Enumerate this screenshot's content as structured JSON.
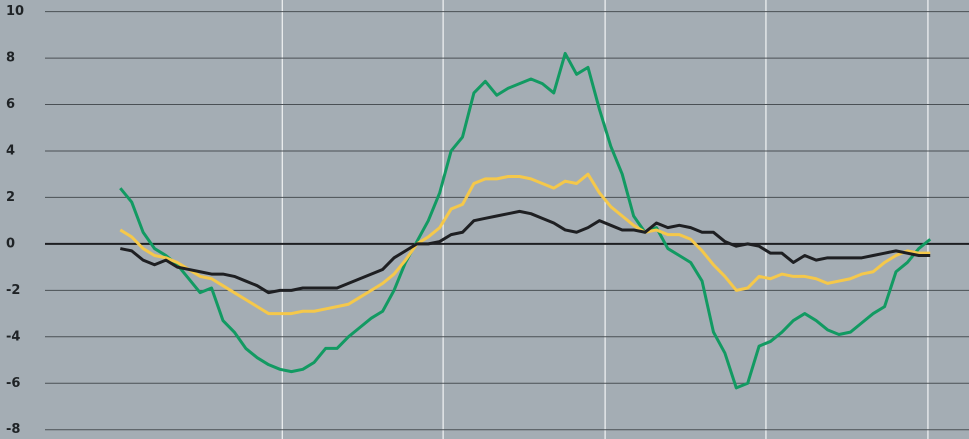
{
  "chart_data": {
    "type": "line",
    "x": [
      0,
      1,
      2,
      3,
      4,
      5,
      6,
      7,
      8,
      9,
      10,
      11,
      12,
      13,
      14,
      15,
      16,
      17,
      18,
      19,
      20,
      21,
      22,
      23,
      24,
      25,
      26,
      27,
      28,
      29,
      30,
      31,
      32,
      33,
      34,
      35,
      36,
      37,
      38,
      39,
      40,
      41,
      42,
      43,
      44,
      45,
      46,
      47,
      48,
      49,
      50,
      51,
      52,
      53,
      54,
      55,
      56,
      57,
      58,
      59,
      60,
      61,
      62,
      63,
      64,
      65,
      66,
      67,
      68,
      69,
      70,
      71
    ],
    "series": [
      {
        "color": "#129a62",
        "values": [
          2.4,
          1.8,
          0.5,
          -0.2,
          -0.5,
          -0.9,
          -1.5,
          -2.1,
          -1.9,
          -3.3,
          -3.8,
          -4.5,
          -4.9,
          -5.2,
          -5.4,
          -5.5,
          -5.4,
          -5.1,
          -4.5,
          -4.5,
          -4.0,
          -3.6,
          -3.2,
          -2.9,
          -2.0,
          -0.8,
          0.1,
          1.0,
          2.2,
          4.0,
          4.6,
          6.5,
          7.0,
          6.4,
          6.7,
          6.9,
          7.1,
          6.9,
          6.5,
          8.2,
          7.3,
          7.6,
          5.8,
          4.2,
          3.0,
          1.2,
          0.5,
          0.7,
          -0.2,
          -0.5,
          -0.8,
          -1.6,
          -3.8,
          -4.7,
          -6.2,
          -6.0,
          -4.4,
          -4.2,
          -3.8,
          -3.3,
          -3.0,
          -3.3,
          -3.7,
          -3.9,
          -3.8,
          -3.4,
          -3.0,
          -2.7,
          -1.2,
          -0.8,
          -0.2,
          0.2
        ]
      },
      {
        "color": "#f5c84a",
        "values": [
          0.6,
          0.3,
          -0.2,
          -0.5,
          -0.6,
          -0.8,
          -1.1,
          -1.4,
          -1.5,
          -1.8,
          -2.1,
          -2.4,
          -2.7,
          -3.0,
          -3.0,
          -3.0,
          -2.9,
          -2.9,
          -2.8,
          -2.7,
          -2.6,
          -2.3,
          -2.0,
          -1.7,
          -1.3,
          -0.7,
          0.0,
          0.3,
          0.7,
          1.5,
          1.7,
          2.6,
          2.8,
          2.8,
          2.9,
          2.9,
          2.8,
          2.6,
          2.4,
          2.7,
          2.6,
          3.0,
          2.2,
          1.6,
          1.2,
          0.8,
          0.5,
          0.6,
          0.4,
          0.4,
          0.2,
          -0.3,
          -0.9,
          -1.4,
          -2.0,
          -1.9,
          -1.4,
          -1.5,
          -1.3,
          -1.4,
          -1.4,
          -1.5,
          -1.7,
          -1.6,
          -1.5,
          -1.3,
          -1.2,
          -0.8,
          -0.5,
          -0.3,
          -0.4,
          -0.4
        ]
      },
      {
        "color": "#1e1f22",
        "values": [
          -0.2,
          -0.3,
          -0.7,
          -0.9,
          -0.7,
          -1.0,
          -1.1,
          -1.2,
          -1.3,
          -1.3,
          -1.4,
          -1.6,
          -1.8,
          -2.1,
          -2.0,
          -2.0,
          -1.9,
          -1.9,
          -1.9,
          -1.9,
          -1.7,
          -1.5,
          -1.3,
          -1.1,
          -0.6,
          -0.3,
          0.0,
          0.0,
          0.1,
          0.4,
          0.5,
          1.0,
          1.1,
          1.2,
          1.3,
          1.4,
          1.3,
          1.1,
          0.9,
          0.6,
          0.5,
          0.7,
          1.0,
          0.8,
          0.6,
          0.6,
          0.5,
          0.9,
          0.7,
          0.8,
          0.7,
          0.5,
          0.5,
          0.1,
          -0.1,
          0.0,
          -0.1,
          -0.4,
          -0.4,
          -0.8,
          -0.5,
          -0.7,
          -0.6,
          -0.6,
          -0.6,
          -0.6,
          -0.5,
          -0.4,
          -0.3,
          -0.4,
          -0.5,
          -0.5
        ]
      }
    ],
    "xlim": [
      -6.6,
      74.4
    ],
    "xticks": [
      14.2,
      28.3,
      42.5,
      56.6,
      70.8
    ],
    "ylim": [
      -8.4,
      10.5
    ],
    "yticks": [
      10,
      8,
      6,
      4,
      2,
      0,
      -2,
      -4,
      -6,
      -8
    ],
    "grid": true
  }
}
